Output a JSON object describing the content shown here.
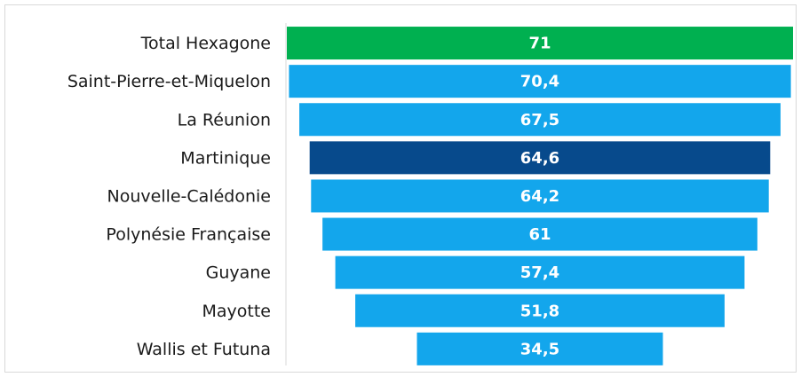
{
  "chart_data": {
    "type": "funnel",
    "categories": [
      "Total Hexagone",
      "Saint-Pierre-et-Miquelon",
      "La Réunion",
      "Martinique",
      "Nouvelle-Calédonie",
      "Polynésie Française",
      "Guyane",
      "Mayotte",
      "Wallis et Futuna"
    ],
    "values": [
      71,
      70.4,
      67.5,
      64.6,
      64.2,
      61,
      57.4,
      51.8,
      34.5
    ],
    "value_labels": [
      "71",
      "70,4",
      "67,5",
      "64,6",
      "64,2",
      "61",
      "57,4",
      "51,8",
      "34,5"
    ],
    "colors": [
      "#00b050",
      "#13a6ec",
      "#13a6ec",
      "#074a8c",
      "#13a6ec",
      "#13a6ec",
      "#13a6ec",
      "#13a6ec",
      "#13a6ec"
    ]
  }
}
